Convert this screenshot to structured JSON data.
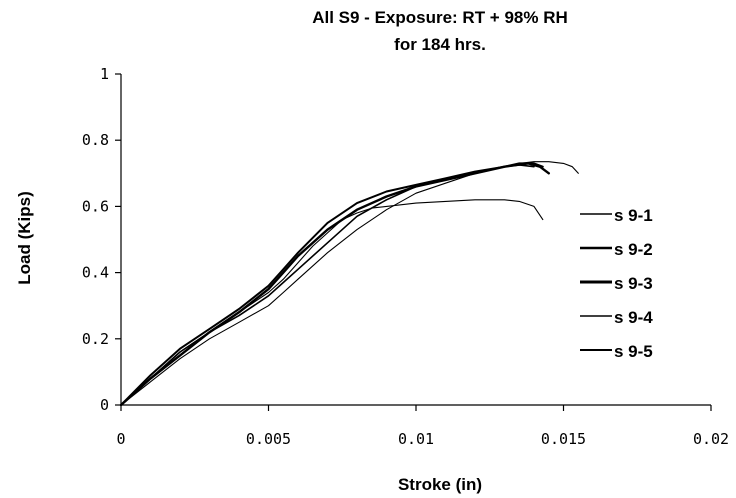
{
  "chart_data": {
    "type": "line",
    "title": [
      "All S9 - Exposure: RT + 98% RH",
      "for 184 hrs."
    ],
    "xlabel": "Stroke (in)",
    "ylabel": "Load (Kips)",
    "xlim": [
      0,
      0.02
    ],
    "ylim": [
      0,
      1
    ],
    "x_ticks": [
      0,
      0.005,
      0.01,
      0.015,
      0.02
    ],
    "x_tick_labels": [
      "0",
      "0.005",
      "0.01",
      "0.015",
      "0.02"
    ],
    "y_ticks": [
      0,
      0.2,
      0.4,
      0.6,
      0.8,
      1
    ],
    "y_tick_labels": [
      "0",
      "0.2",
      "0.4",
      "0.6",
      "0.8",
      "1"
    ],
    "grid": false,
    "legend_position": "right",
    "series": [
      {
        "name": "s 9-1",
        "stroke_width": 1.1,
        "x": [
          0,
          0.001,
          0.002,
          0.003,
          0.004,
          0.005,
          0.0055,
          0.006,
          0.007,
          0.008,
          0.009,
          0.01,
          0.011,
          0.012,
          0.013,
          0.0135,
          0.014,
          0.0145,
          0.015,
          0.0153,
          0.0155
        ],
        "y": [
          0,
          0.07,
          0.14,
          0.2,
          0.25,
          0.3,
          0.34,
          0.38,
          0.46,
          0.53,
          0.59,
          0.64,
          0.67,
          0.7,
          0.72,
          0.73,
          0.735,
          0.735,
          0.73,
          0.72,
          0.7
        ]
      },
      {
        "name": "s 9-2",
        "stroke_width": 2.0,
        "x": [
          0,
          0.001,
          0.002,
          0.003,
          0.004,
          0.005,
          0.0055,
          0.006,
          0.007,
          0.008,
          0.009,
          0.01,
          0.011,
          0.012,
          0.013,
          0.0135,
          0.014,
          0.0143
        ],
        "y": [
          0,
          0.09,
          0.17,
          0.23,
          0.29,
          0.36,
          0.41,
          0.46,
          0.55,
          0.61,
          0.645,
          0.665,
          0.685,
          0.705,
          0.72,
          0.73,
          0.73,
          0.72
        ]
      },
      {
        "name": "s 9-3",
        "stroke_width": 2.4,
        "x": [
          0,
          0.001,
          0.002,
          0.003,
          0.004,
          0.005,
          0.0055,
          0.006,
          0.007,
          0.008,
          0.009,
          0.01,
          0.011,
          0.012,
          0.013,
          0.0138,
          0.0142,
          0.0145
        ],
        "y": [
          0,
          0.08,
          0.15,
          0.22,
          0.28,
          0.35,
          0.4,
          0.45,
          0.53,
          0.59,
          0.63,
          0.66,
          0.68,
          0.7,
          0.72,
          0.73,
          0.72,
          0.7
        ]
      },
      {
        "name": "s 9-4",
        "stroke_width": 1.1,
        "x": [
          0,
          0.001,
          0.002,
          0.003,
          0.004,
          0.005,
          0.0055,
          0.006,
          0.0065,
          0.007,
          0.0075,
          0.008,
          0.0085,
          0.009,
          0.01,
          0.011,
          0.012,
          0.013,
          0.0135,
          0.014,
          0.0143
        ],
        "y": [
          0,
          0.08,
          0.16,
          0.22,
          0.28,
          0.34,
          0.38,
          0.43,
          0.48,
          0.52,
          0.56,
          0.58,
          0.595,
          0.6,
          0.61,
          0.615,
          0.62,
          0.62,
          0.615,
          0.6,
          0.56
        ]
      },
      {
        "name": "s 9-5",
        "stroke_width": 1.6,
        "x": [
          0,
          0.001,
          0.002,
          0.003,
          0.004,
          0.005,
          0.0055,
          0.006,
          0.007,
          0.008,
          0.009,
          0.01,
          0.011,
          0.012,
          0.013,
          0.0135,
          0.014
        ],
        "y": [
          0,
          0.08,
          0.16,
          0.22,
          0.27,
          0.33,
          0.37,
          0.41,
          0.49,
          0.57,
          0.62,
          0.66,
          0.68,
          0.7,
          0.72,
          0.725,
          0.72
        ]
      }
    ]
  }
}
